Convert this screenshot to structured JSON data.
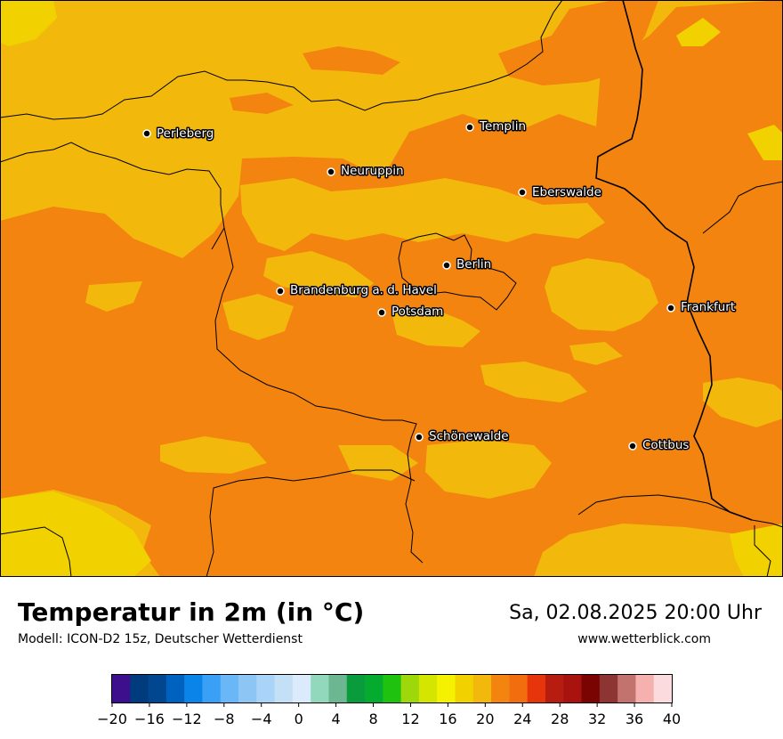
{
  "header": {
    "title": "Temperatur in 2m (in °C)",
    "model": "Modell: ICON-D2 15z, Deutscher Wetterdienst",
    "datetime": "Sa, 02.08.2025 20:00 Uhr",
    "website": "www.wetterblick.com"
  },
  "colors": {
    "range_16_18": "#f1d100",
    "range_18_20": "#f2b90c",
    "range_20_22": "#f2840f",
    "border": "#000000"
  },
  "cities": [
    {
      "name": "Perleberg"
    },
    {
      "name": "Templin"
    },
    {
      "name": "Neuruppin"
    },
    {
      "name": "Eberswalde"
    },
    {
      "name": "Berlin"
    },
    {
      "name": "Brandenburg a. d. Havel"
    },
    {
      "name": "Potsdam"
    },
    {
      "name": "Frankfurt"
    },
    {
      "name": "Schönewalde"
    },
    {
      "name": "Cottbus"
    }
  ],
  "colorbar": {
    "min": -20,
    "max": 40,
    "step": 2,
    "tick_labels": [
      "−20",
      "−16",
      "−12",
      "−8",
      "−4",
      "0",
      "4",
      "8",
      "12",
      "16",
      "20",
      "24",
      "28",
      "32",
      "36",
      "40"
    ],
    "colors": [
      "#3d0f8c",
      "#003b7d",
      "#00478f",
      "#0062bf",
      "#0a84e8",
      "#3aa0f5",
      "#6ab7f7",
      "#8dc6f5",
      "#a9d4f7",
      "#c4e0f7",
      "#dbebfb",
      "#92d8bd",
      "#6cb692",
      "#099b3c",
      "#04ab2f",
      "#1ec20f",
      "#9fd80a",
      "#d4e600",
      "#f4f200",
      "#f1d100",
      "#f2b90c",
      "#f2840f",
      "#f16d0e",
      "#e6350b",
      "#b61d10",
      "#a8120f",
      "#7a0402",
      "#8d3532",
      "#c2736d",
      "#f5b1ad",
      "#fcdbde"
    ]
  }
}
